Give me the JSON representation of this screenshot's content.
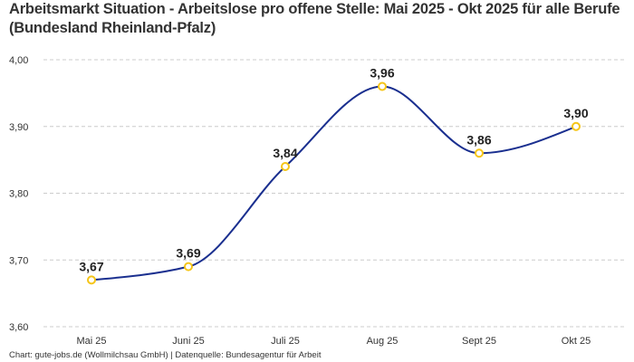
{
  "chart_data": {
    "type": "line",
    "title": "Arbeitsmarkt Situation - Arbeitslose pro offene Stelle: Mai 2025 - Okt 2025 für alle Berufe (Bundesland Rheinland-Pfalz)",
    "categories": [
      "Mai 25",
      "Juni 25",
      "Juli 25",
      "Aug 25",
      "Sept 25",
      "Okt 25"
    ],
    "values": [
      3.67,
      3.69,
      3.84,
      3.96,
      3.86,
      3.9
    ],
    "data_labels": [
      "3,67",
      "3,69",
      "3,84",
      "3,96",
      "3,86",
      "3,90"
    ],
    "yticks": [
      "3,60",
      "3,70",
      "3,80",
      "3,90",
      "4,00"
    ],
    "ylim": [
      3.6,
      4.0
    ],
    "grid": true,
    "line_color": "#1a2f8f",
    "marker_color": "#f5c518",
    "xlabel": "",
    "ylabel": ""
  },
  "footer": "Chart: gute-jobs.de (Wollmilchsau GmbH) | Datenquelle: Bundesagentur für Arbeit"
}
